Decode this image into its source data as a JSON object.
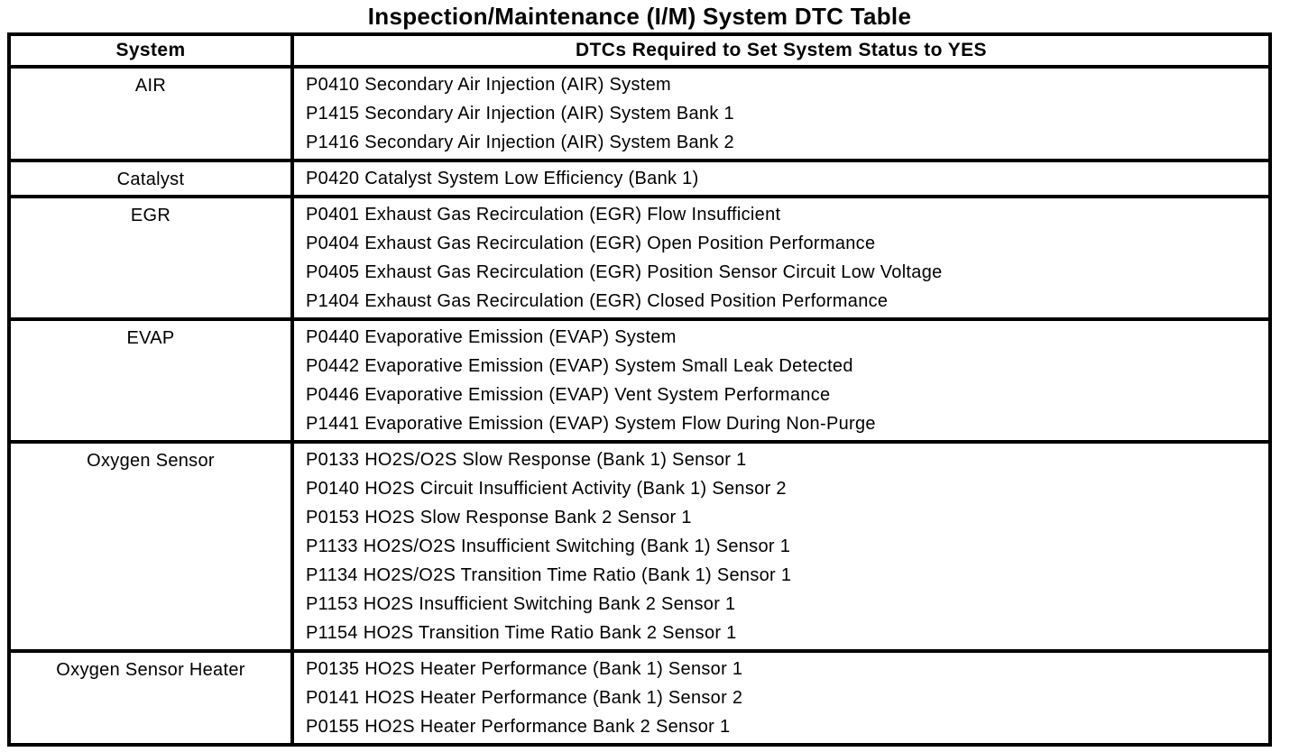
{
  "title": "Inspection/Maintenance (I/M) System DTC Table",
  "colors": {
    "ink": "#000000",
    "paper": "#ffffff"
  },
  "table": {
    "headers": [
      "System",
      "DTCs Required to Set System Status to YES"
    ],
    "rows": [
      {
        "system": "AIR",
        "dtcs": [
          "P0410 Secondary Air Injection (AIR) System",
          "P1415 Secondary Air Injection (AIR) System Bank 1",
          "P1416 Secondary Air Injection (AIR) System Bank 2"
        ]
      },
      {
        "system": "Catalyst",
        "dtcs": [
          "P0420 Catalyst System Low Efficiency (Bank 1)"
        ]
      },
      {
        "system": "EGR",
        "dtcs": [
          "P0401 Exhaust Gas Recirculation (EGR) Flow Insufficient",
          "P0404 Exhaust Gas Recirculation (EGR) Open Position Performance",
          "P0405 Exhaust Gas Recirculation (EGR) Position Sensor Circuit Low Voltage",
          "P1404 Exhaust Gas Recirculation (EGR) Closed Position Performance"
        ]
      },
      {
        "system": "EVAP",
        "dtcs": [
          "P0440 Evaporative Emission (EVAP) System",
          "P0442 Evaporative Emission (EVAP) System Small Leak Detected",
          "P0446 Evaporative Emission (EVAP) Vent System Performance",
          "P1441 Evaporative Emission (EVAP) System Flow During Non-Purge"
        ]
      },
      {
        "system": "Oxygen Sensor",
        "dtcs": [
          "P0133 HO2S/O2S Slow Response (Bank 1) Sensor 1",
          "P0140 HO2S Circuit Insufficient Activity (Bank 1) Sensor 2",
          "P0153 HO2S Slow Response Bank 2 Sensor 1",
          "P1133 HO2S/O2S Insufficient Switching (Bank 1) Sensor 1",
          "P1134 HO2S/O2S Transition Time Ratio (Bank 1) Sensor 1",
          "P1153 HO2S Insufficient Switching Bank 2 Sensor 1",
          "P1154 HO2S Transition Time Ratio Bank 2 Sensor 1"
        ]
      },
      {
        "system": "Oxygen Sensor Heater",
        "dtcs": [
          "P0135 HO2S Heater Performance (Bank 1) Sensor 1",
          "P0141 HO2S Heater Performance (Bank 1) Sensor 2",
          "P0155 HO2S Heater Performance Bank 2 Sensor 1"
        ]
      }
    ]
  }
}
